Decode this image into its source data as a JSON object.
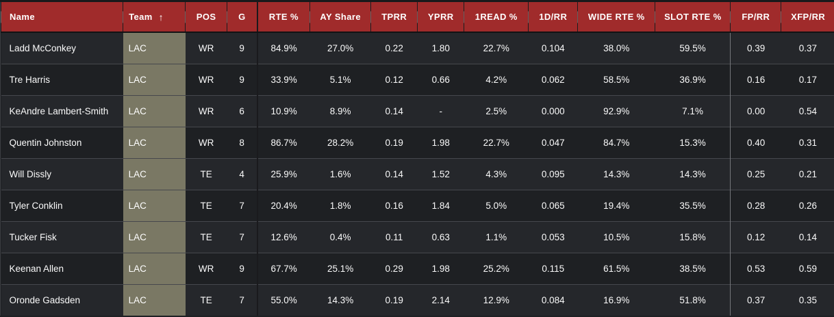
{
  "header": {
    "sort": {
      "column": "Team",
      "direction": "ascending",
      "glyph": "↑"
    }
  },
  "table": {
    "columns": [
      {
        "id": "name",
        "label": "Name"
      },
      {
        "id": "team",
        "label": "Team"
      },
      {
        "id": "pos",
        "label": "POS"
      },
      {
        "id": "g",
        "label": "G"
      },
      {
        "id": "rte-pct",
        "label": "RTE %"
      },
      {
        "id": "ay-share",
        "label": "AY Share"
      },
      {
        "id": "tprr",
        "label": "TPRR"
      },
      {
        "id": "yprr",
        "label": "YPRR"
      },
      {
        "id": "1read-pct",
        "label": "1READ %"
      },
      {
        "id": "1d-rr",
        "label": "1D/RR"
      },
      {
        "id": "wide-rte-pct",
        "label": "WIDE RTE %"
      },
      {
        "id": "slot-rte-pct",
        "label": "SLOT RTE %"
      },
      {
        "id": "fp-rr",
        "label": "FP/RR"
      },
      {
        "id": "xfp-rr",
        "label": "XFP/RR"
      }
    ],
    "rows": [
      [
        "Ladd McConkey",
        "LAC",
        "WR",
        "9",
        "84.9%",
        "27.0%",
        "0.22",
        "1.80",
        "22.7%",
        "0.104",
        "38.0%",
        "59.5%",
        "0.39",
        "0.37"
      ],
      [
        "Tre Harris",
        "LAC",
        "WR",
        "9",
        "33.9%",
        "5.1%",
        "0.12",
        "0.66",
        "4.2%",
        "0.062",
        "58.5%",
        "36.9%",
        "0.16",
        "0.17"
      ],
      [
        "KeAndre Lambert-Smith",
        "LAC",
        "WR",
        "6",
        "10.9%",
        "8.9%",
        "0.14",
        "-",
        "2.5%",
        "0.000",
        "92.9%",
        "7.1%",
        "0.00",
        "0.54"
      ],
      [
        "Quentin Johnston",
        "LAC",
        "WR",
        "8",
        "86.7%",
        "28.2%",
        "0.19",
        "1.98",
        "22.7%",
        "0.047",
        "84.7%",
        "15.3%",
        "0.40",
        "0.31"
      ],
      [
        "Will Dissly",
        "LAC",
        "TE",
        "4",
        "25.9%",
        "1.6%",
        "0.14",
        "1.52",
        "4.3%",
        "0.095",
        "14.3%",
        "14.3%",
        "0.25",
        "0.21"
      ],
      [
        "Tyler Conklin",
        "LAC",
        "TE",
        "7",
        "20.4%",
        "1.8%",
        "0.16",
        "1.84",
        "5.0%",
        "0.065",
        "19.4%",
        "35.5%",
        "0.28",
        "0.26"
      ],
      [
        "Tucker Fisk",
        "LAC",
        "TE",
        "7",
        "12.6%",
        "0.4%",
        "0.11",
        "0.63",
        "1.1%",
        "0.053",
        "10.5%",
        "15.8%",
        "0.12",
        "0.14"
      ],
      [
        "Keenan Allen",
        "LAC",
        "WR",
        "9",
        "67.7%",
        "25.1%",
        "0.29",
        "1.98",
        "25.2%",
        "0.115",
        "61.5%",
        "38.5%",
        "0.53",
        "0.59"
      ],
      [
        "Oronde Gadsden",
        "LAC",
        "TE",
        "7",
        "55.0%",
        "14.3%",
        "0.19",
        "2.14",
        "12.9%",
        "0.084",
        "16.9%",
        "51.8%",
        "0.37",
        "0.35"
      ]
    ]
  },
  "colors": {
    "header_bg": "#a02b2b",
    "team_cell_bg": "#7a7864",
    "row_odd": "#25272b",
    "row_even": "#1e2023"
  }
}
